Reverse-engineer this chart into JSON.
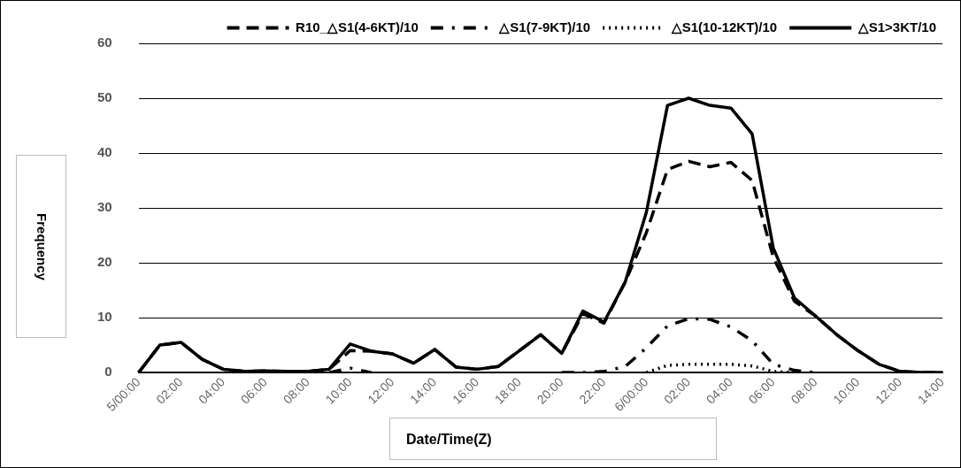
{
  "chart_data": {
    "type": "line",
    "xlabel": "Date/Time(Z)",
    "ylabel": "Frequency",
    "categories": [
      "5/00:00",
      null,
      "02:00",
      null,
      "04:00",
      null,
      "06:00",
      null,
      "08:00",
      null,
      "10:00",
      null,
      "12:00",
      null,
      "14:00",
      null,
      "16:00",
      null,
      "18:00",
      null,
      "20:00",
      null,
      "22:00",
      null,
      "6/00:00",
      null,
      "02:00",
      null,
      "04:00",
      null,
      "06:00",
      null,
      "08:00",
      null,
      "10:00",
      null,
      "12:00",
      null,
      "14:00"
    ],
    "series": [
      {
        "name": "R10_△S1(4-6KT)/10",
        "color": "#000000",
        "line_style": "dashed",
        "values": [
          0,
          5,
          5.5,
          2.4,
          0.6,
          0.2,
          0.3,
          0.2,
          0.2,
          0.6,
          4,
          3.9,
          3.4,
          1.7,
          4.2,
          1,
          0.6,
          1.1,
          4,
          6.9,
          3.5,
          10.7,
          9,
          16.5,
          25.5,
          37,
          38.5,
          37.5,
          38.3,
          35,
          21,
          13,
          10.3,
          6.9,
          4,
          1.5,
          0.2,
          0,
          0
        ]
      },
      {
        "name": "△S1(7-9KT)/10",
        "color": "#000000",
        "line_style": "dashdot",
        "values": [
          null,
          null,
          null,
          null,
          null,
          null,
          null,
          null,
          null,
          0,
          0.8,
          0,
          null,
          null,
          null,
          null,
          null,
          null,
          null,
          null,
          0,
          0,
          0.2,
          1.1,
          4.5,
          8.5,
          9.8,
          9.7,
          8.3,
          5.8,
          1.5,
          0.4,
          0,
          null,
          null,
          null,
          null,
          null,
          null
        ]
      },
      {
        "name": "△S1(10-12KT)/10",
        "color": "#000000",
        "line_style": "dotted",
        "values": [
          null,
          null,
          null,
          null,
          null,
          null,
          null,
          null,
          null,
          null,
          null,
          null,
          null,
          null,
          null,
          null,
          null,
          null,
          null,
          null,
          null,
          null,
          null,
          null,
          0,
          1.3,
          1.5,
          1.5,
          1.5,
          1.2,
          0.2,
          0,
          null,
          null,
          null,
          null,
          null,
          null,
          null
        ]
      },
      {
        "name": "△S1>3KT/10",
        "color": "#000000",
        "line_style": "solid",
        "values": [
          0,
          5,
          5.5,
          2.4,
          0.6,
          0.2,
          0.3,
          0.2,
          0.2,
          0.6,
          5.2,
          3.9,
          3.4,
          1.7,
          4.2,
          1,
          0.6,
          1.1,
          4,
          6.9,
          3.5,
          11.2,
          9.2,
          16.5,
          29.2,
          48.7,
          50,
          48.7,
          48.2,
          43.5,
          22.7,
          13.6,
          10.3,
          6.9,
          4,
          1.5,
          0.2,
          0,
          0
        ]
      }
    ],
    "ylim": [
      0,
      60
    ],
    "yticks": [
      0,
      10,
      20,
      30,
      40,
      50,
      60
    ],
    "grid": "y",
    "legend": "top",
    "marker": "none"
  }
}
